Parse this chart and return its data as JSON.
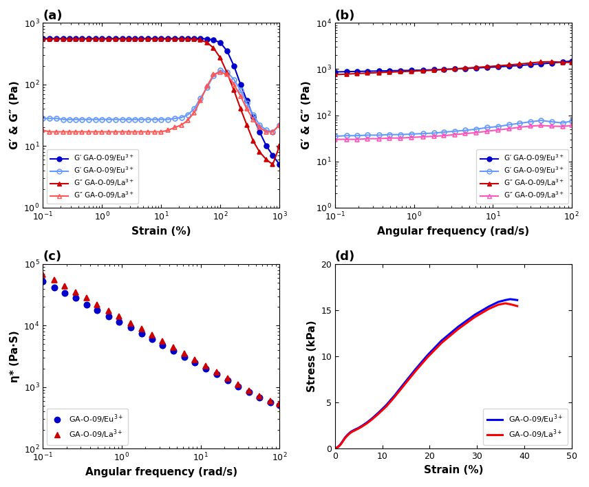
{
  "panel_a": {
    "title": "(a)",
    "xlabel": "Strain (%)",
    "ylabel": "G′ & G″ (Pa)",
    "xlim": [
      0.1,
      1000
    ],
    "ylim": [
      1,
      1000
    ],
    "series": {
      "G_prime_Eu": {
        "label": "G′ GA-O-09/Eu$^{3+}$",
        "color": "#0000cc",
        "marker": "o",
        "filled": true,
        "x": [
          0.1,
          0.13,
          0.17,
          0.22,
          0.28,
          0.36,
          0.46,
          0.6,
          0.77,
          1.0,
          1.3,
          1.7,
          2.2,
          2.8,
          3.6,
          4.6,
          6.0,
          7.7,
          10,
          13,
          17,
          22,
          28,
          36,
          46,
          60,
          77,
          100,
          130,
          170,
          220,
          280,
          360,
          460,
          600,
          770,
          1000
        ],
        "y": [
          560,
          560,
          560,
          560,
          560,
          560,
          560,
          560,
          560,
          560,
          560,
          560,
          560,
          560,
          560,
          560,
          560,
          560,
          560,
          560,
          560,
          560,
          560,
          560,
          560,
          550,
          530,
          480,
          350,
          200,
          100,
          55,
          30,
          17,
          10,
          7,
          5
        ]
      },
      "G_double_prime_Eu": {
        "label": "G′ GA-O-09/Eu$^{3+}$",
        "color": "#6699ff",
        "marker": "o",
        "filled": false,
        "x": [
          0.1,
          0.13,
          0.17,
          0.22,
          0.28,
          0.36,
          0.46,
          0.6,
          0.77,
          1.0,
          1.3,
          1.7,
          2.2,
          2.8,
          3.6,
          4.6,
          6.0,
          7.7,
          10,
          13,
          17,
          22,
          28,
          36,
          46,
          60,
          77,
          100,
          130,
          170,
          220,
          280,
          360,
          460,
          600,
          770,
          1000
        ],
        "y": [
          28,
          28,
          28,
          27,
          27,
          27,
          27,
          27,
          27,
          27,
          27,
          27,
          27,
          27,
          27,
          27,
          27,
          27,
          27,
          27,
          28,
          29,
          32,
          40,
          60,
          90,
          140,
          170,
          160,
          120,
          80,
          50,
          32,
          22,
          18,
          17,
          22
        ]
      },
      "G_prime_La": {
        "label": "G″ GA-O-09/La$^{3+}$",
        "color": "#cc0000",
        "marker": "^",
        "filled": true,
        "x": [
          0.1,
          0.13,
          0.17,
          0.22,
          0.28,
          0.36,
          0.46,
          0.6,
          0.77,
          1.0,
          1.3,
          1.7,
          2.2,
          2.8,
          3.6,
          4.6,
          6.0,
          7.7,
          10,
          13,
          17,
          22,
          28,
          36,
          46,
          60,
          77,
          100,
          130,
          170,
          220,
          280,
          360,
          460,
          600,
          770,
          1000
        ],
        "y": [
          550,
          550,
          550,
          550,
          550,
          550,
          550,
          550,
          550,
          550,
          550,
          550,
          550,
          550,
          550,
          550,
          550,
          550,
          550,
          550,
          550,
          550,
          550,
          545,
          530,
          480,
          390,
          270,
          155,
          80,
          40,
          22,
          12,
          8,
          6,
          5,
          10
        ]
      },
      "G_double_prime_La": {
        "label": "G″ GA-O-09/La$^{3+}$",
        "color": "#ff5555",
        "marker": "^",
        "filled": false,
        "x": [
          0.1,
          0.13,
          0.17,
          0.22,
          0.28,
          0.36,
          0.46,
          0.6,
          0.77,
          1.0,
          1.3,
          1.7,
          2.2,
          2.8,
          3.6,
          4.6,
          6.0,
          7.7,
          10,
          13,
          17,
          22,
          28,
          36,
          46,
          60,
          77,
          100,
          130,
          170,
          220,
          280,
          360,
          460,
          600,
          770,
          1000
        ],
        "y": [
          18,
          17,
          17,
          17,
          17,
          17,
          17,
          17,
          17,
          17,
          17,
          17,
          17,
          17,
          17,
          17,
          17,
          17,
          17,
          18,
          20,
          22,
          26,
          35,
          55,
          95,
          145,
          160,
          145,
          100,
          65,
          40,
          27,
          20,
          17,
          17,
          22
        ]
      }
    }
  },
  "panel_b": {
    "title": "(b)",
    "xlabel": "Angular frequency (rad/s)",
    "ylabel": "G′ & G″ (Pa)",
    "xlim": [
      0.1,
      100
    ],
    "ylim": [
      1,
      10000
    ],
    "series": {
      "G_prime_Eu": {
        "label": "G′ GA-O-09/Eu$^{3+}$",
        "color": "#0000cc",
        "marker": "o",
        "filled": true,
        "x": [
          0.1,
          0.14,
          0.19,
          0.26,
          0.36,
          0.49,
          0.68,
          0.93,
          1.3,
          1.8,
          2.4,
          3.3,
          4.5,
          6.2,
          8.5,
          11.7,
          16,
          22,
          30,
          41,
          56,
          77,
          100
        ],
        "y": [
          870,
          880,
          890,
          900,
          910,
          920,
          930,
          940,
          950,
          970,
          990,
          1010,
          1030,
          1060,
          1090,
          1120,
          1160,
          1200,
          1250,
          1300,
          1360,
          1430,
          1500
        ]
      },
      "G_double_prime_Eu": {
        "label": "G′ GA-O-09/Eu$^{3+}$",
        "color": "#6699ff",
        "marker": "o",
        "filled": false,
        "x": [
          0.1,
          0.14,
          0.19,
          0.26,
          0.36,
          0.49,
          0.68,
          0.93,
          1.3,
          1.8,
          2.4,
          3.3,
          4.5,
          6.2,
          8.5,
          11.7,
          16,
          22,
          30,
          41,
          56,
          77,
          100
        ],
        "y": [
          35,
          36,
          36,
          37,
          37,
          38,
          38,
          39,
          40,
          41,
          43,
          45,
          47,
          50,
          54,
          57,
          62,
          67,
          72,
          77,
          72,
          68,
          75
        ]
      },
      "G_prime_La": {
        "label": "G″ GA-O-09/La$^{3+}$",
        "color": "#cc0000",
        "marker": "^",
        "filled": true,
        "x": [
          0.1,
          0.14,
          0.19,
          0.26,
          0.36,
          0.49,
          0.68,
          0.93,
          1.3,
          1.8,
          2.4,
          3.3,
          4.5,
          6.2,
          8.5,
          11.7,
          16,
          22,
          30,
          41,
          56,
          77,
          100
        ],
        "y": [
          760,
          780,
          800,
          820,
          840,
          860,
          880,
          900,
          920,
          950,
          980,
          1010,
          1050,
          1090,
          1130,
          1180,
          1230,
          1290,
          1360,
          1430,
          1450,
          1400,
          1400
        ]
      },
      "G_double_prime_La": {
        "label": "G″ GA-O-09/La$^{3+}$",
        "color": "#ff55bb",
        "marker": "^",
        "filled": false,
        "x": [
          0.1,
          0.14,
          0.19,
          0.26,
          0.36,
          0.49,
          0.68,
          0.93,
          1.3,
          1.8,
          2.4,
          3.3,
          4.5,
          6.2,
          8.5,
          11.7,
          16,
          22,
          30,
          41,
          56,
          77,
          100
        ],
        "y": [
          30,
          30,
          30,
          31,
          31,
          32,
          32,
          33,
          34,
          35,
          36,
          38,
          40,
          42,
          45,
          48,
          51,
          55,
          58,
          60,
          58,
          57,
          60
        ]
      }
    }
  },
  "panel_c": {
    "title": "(c)",
    "xlabel": "Angular frequency (rad/s)",
    "ylabel": "η* (Pa·S)",
    "xlim": [
      0.1,
      100
    ],
    "ylim": [
      100,
      100000
    ],
    "series": {
      "Eu": {
        "label": "GA-O-09/Eu$^{3+}$",
        "color": "#0000cc",
        "marker": "o",
        "x": [
          0.1,
          0.14,
          0.19,
          0.26,
          0.36,
          0.49,
          0.68,
          0.93,
          1.3,
          1.8,
          2.4,
          3.3,
          4.5,
          6.2,
          8.5,
          11.7,
          16,
          22,
          30,
          41,
          56,
          77,
          100
        ],
        "y": [
          52000,
          42000,
          34000,
          28000,
          22000,
          18000,
          14000,
          11500,
          9300,
          7500,
          6000,
          4800,
          3900,
          3100,
          2500,
          2000,
          1600,
          1280,
          1030,
          820,
          670,
          560,
          510
        ]
      },
      "La": {
        "label": "GA-O-09/La$^{3+}$",
        "color": "#cc0000",
        "marker": "^",
        "x": [
          0.1,
          0.14,
          0.19,
          0.26,
          0.36,
          0.49,
          0.68,
          0.93,
          1.3,
          1.8,
          2.4,
          3.3,
          4.5,
          6.2,
          8.5,
          11.7,
          16,
          22,
          30,
          41,
          56,
          77,
          100
        ],
        "y": [
          68000,
          55000,
          44000,
          35000,
          28000,
          22000,
          17500,
          14000,
          11000,
          8800,
          7000,
          5600,
          4400,
          3500,
          2800,
          2200,
          1750,
          1380,
          1100,
          870,
          710,
          590,
          540
        ]
      }
    }
  },
  "panel_d": {
    "title": "(d)",
    "xlabel": "Strain (%)",
    "ylabel": "Stress (kPa)",
    "xlim": [
      0,
      50
    ],
    "ylim": [
      0,
      20
    ],
    "series": {
      "Eu": {
        "label": "GA-O-09/Eu$^{3+}$",
        "color": "#0000ff",
        "x": [
          0.0,
          0.3,
          0.6,
          0.9,
          1.2,
          1.5,
          1.8,
          2.1,
          2.5,
          2.9,
          3.3,
          3.8,
          4.3,
          5.0,
          5.8,
          6.8,
          7.9,
          9.2,
          10.8,
          12.5,
          14.5,
          17.0,
          19.5,
          22.5,
          26.0,
          29.5,
          32.5,
          34.5,
          36.0,
          37.0,
          37.8,
          38.5
        ],
        "y": [
          0.0,
          0.08,
          0.18,
          0.32,
          0.5,
          0.72,
          0.95,
          1.18,
          1.42,
          1.62,
          1.8,
          1.95,
          2.08,
          2.25,
          2.5,
          2.85,
          3.3,
          3.9,
          4.7,
          5.7,
          7.0,
          8.6,
          10.1,
          11.7,
          13.2,
          14.5,
          15.4,
          15.9,
          16.1,
          16.2,
          16.15,
          16.1
        ]
      },
      "La": {
        "label": "GA-O-09/La$^{3+}$",
        "color": "#ff0000",
        "x": [
          0.0,
          0.3,
          0.6,
          0.9,
          1.2,
          1.5,
          1.8,
          2.1,
          2.5,
          2.9,
          3.3,
          3.8,
          4.3,
          5.0,
          5.8,
          6.8,
          7.9,
          9.2,
          10.8,
          12.5,
          14.5,
          17.0,
          19.5,
          22.5,
          26.0,
          29.5,
          32.5,
          34.5,
          36.0,
          37.0,
          37.8,
          38.5
        ],
        "y": [
          0.0,
          0.07,
          0.16,
          0.29,
          0.46,
          0.67,
          0.9,
          1.12,
          1.35,
          1.55,
          1.72,
          1.87,
          2.0,
          2.18,
          2.42,
          2.76,
          3.2,
          3.78,
          4.55,
          5.55,
          6.82,
          8.4,
          9.88,
          11.45,
          12.95,
          14.25,
          15.15,
          15.6,
          15.75,
          15.65,
          15.55,
          15.45
        ]
      }
    }
  },
  "background_color": "#ffffff",
  "label_fontsize": 11,
  "title_fontsize": 13,
  "tick_fontsize": 9,
  "marker_size": 5,
  "linewidth": 1.5
}
